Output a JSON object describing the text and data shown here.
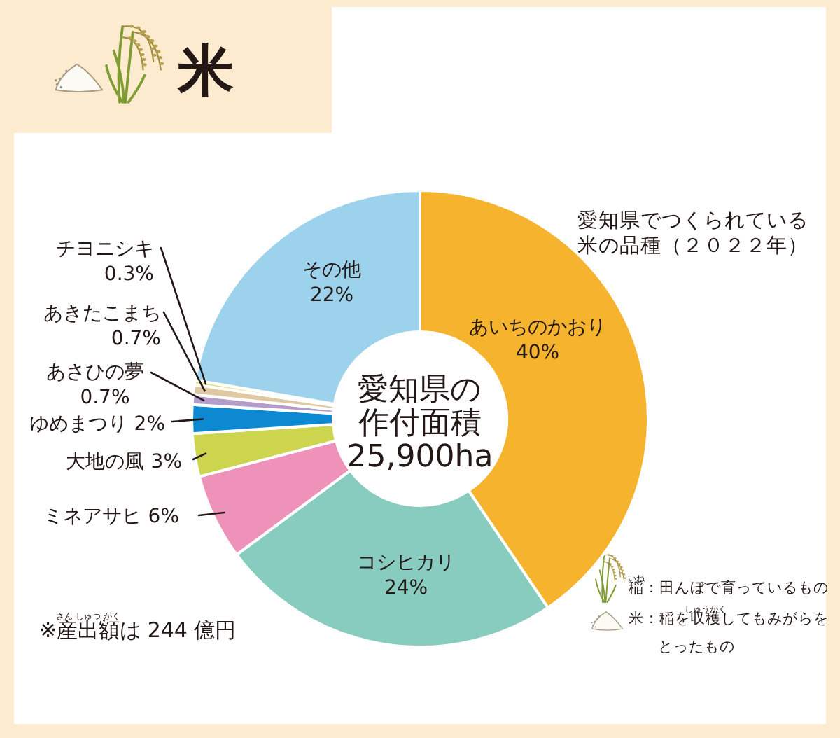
{
  "chart_data": {
    "type": "donut",
    "title": "米",
    "subtitle": "愛知県でつくられている米の品種（２０２２年）",
    "categories": [
      "あいちのかおり",
      "コシヒカリ",
      "ミネアサヒ",
      "大地の風",
      "ゆめまつり",
      "あさひの夢",
      "あきたこまち",
      "チヨニシキ",
      "その他"
    ],
    "values": [
      40,
      24,
      6,
      3,
      2,
      0.7,
      0.7,
      0.3,
      22
    ],
    "value_labels": [
      "40%",
      "24%",
      "6%",
      "3%",
      "2%",
      "0.7%",
      "0.7%",
      "0.3%",
      "22%"
    ],
    "colors": [
      "#f6b42e",
      "#88ccbf",
      "#ef92b9",
      "#cdd44e",
      "#0d89d2",
      "#b59dcb",
      "#e0c8a2",
      "#e1e57c",
      "#9dd2ed"
    ],
    "annotations": [
      "愛知県の作付面積25,900ha",
      "※産出額は 244 億円",
      "さん しゅつ がく",
      "稲：田んぼで育っているもの",
      "いね",
      "米：稲を収穫してもみがらをとったもの",
      "しゅうかく"
    ]
  }
}
